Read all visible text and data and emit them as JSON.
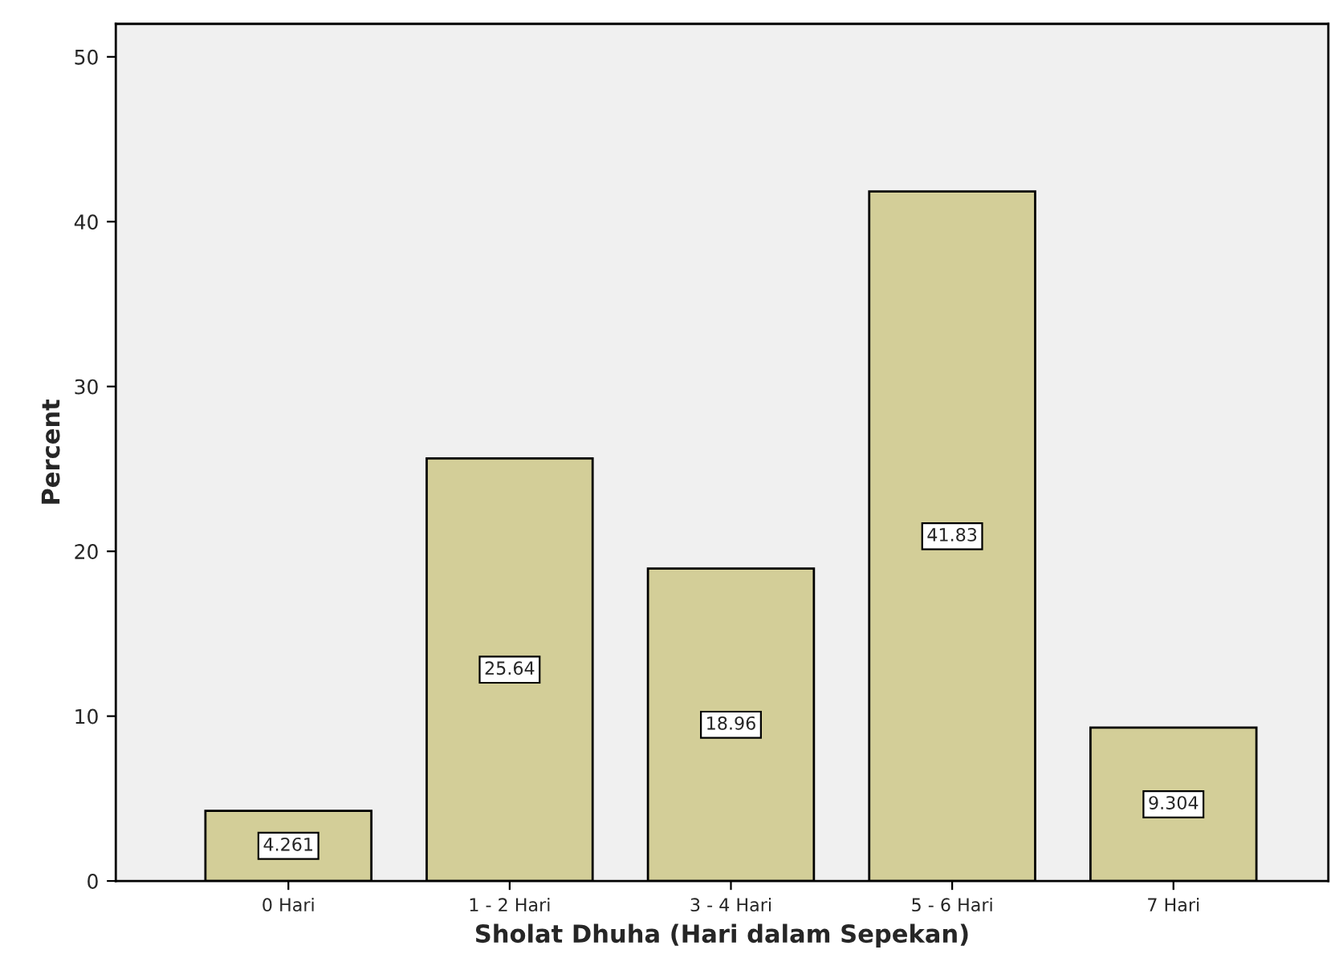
{
  "chart_data": {
    "type": "bar",
    "xlabel": "Sholat Dhuha (Hari dalam Sepekan)",
    "ylabel": "Percent",
    "categories": [
      "0 Hari",
      "1 - 2 Hari",
      "3 - 4 Hari",
      "5 - 6 Hari",
      "7 Hari"
    ],
    "values": [
      4.261,
      25.64,
      18.96,
      41.83,
      9.304
    ],
    "color": "#d3ce98",
    "ylim": [
      0,
      52
    ],
    "yticks": [
      0,
      10,
      20,
      30,
      40,
      50
    ],
    "grid": false,
    "data_labels": true
  }
}
